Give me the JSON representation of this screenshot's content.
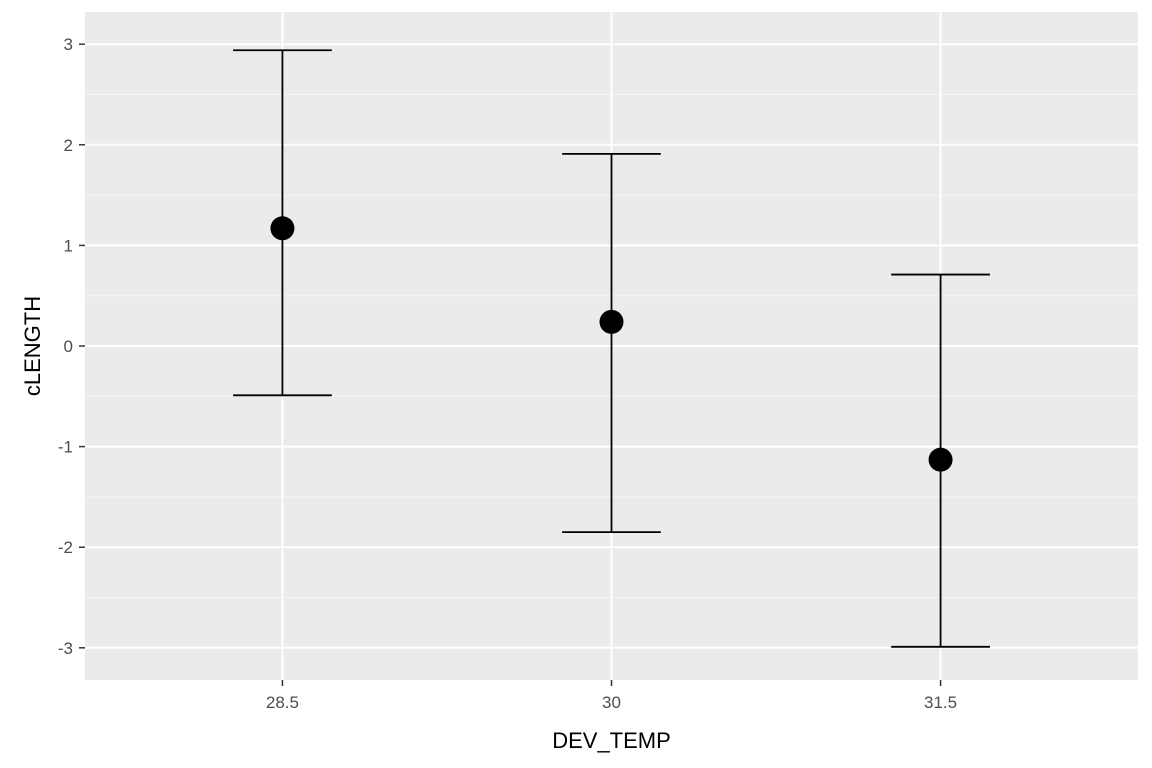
{
  "chart_data": {
    "type": "errorbar",
    "title": "",
    "xlabel": "DEV_TEMP",
    "ylabel": "cLENGTH",
    "categories": [
      "28.5",
      "30",
      "31.5"
    ],
    "series": [
      {
        "values": [
          1.17,
          0.24,
          -1.13
        ],
        "lower": [
          -0.49,
          -1.85,
          -2.99
        ],
        "upper": [
          2.94,
          1.91,
          0.71
        ]
      }
    ],
    "ylim": [
      -3.32,
      3.32
    ],
    "yticks": [
      -3,
      -2,
      -1,
      0,
      1,
      2,
      3
    ],
    "ytick_labels": [
      "-3",
      "-2",
      "-1",
      "0",
      "1",
      "2",
      "3"
    ],
    "grid": true,
    "legend": "none",
    "colors": {
      "panel_background": "#ebebeb",
      "grid_major": "#ffffff",
      "grid_minor": "#f5f5f5",
      "marks": "#000000",
      "tick_text": "#4d4d4d"
    }
  }
}
